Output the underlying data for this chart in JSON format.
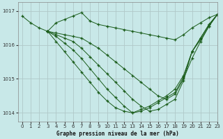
{
  "title": "Graphe pression niveau de la mer (hPa)",
  "background_color": "#c8e8e8",
  "grid_color": "#b0c8c8",
  "line_color": "#1a5c1a",
  "marker": "+",
  "xlim": [
    -0.5,
    23
  ],
  "ylim": [
    1013.75,
    1017.25
  ],
  "yticks": [
    1014,
    1015,
    1016,
    1017
  ],
  "xticks": [
    0,
    1,
    2,
    3,
    4,
    5,
    6,
    7,
    8,
    9,
    10,
    11,
    12,
    13,
    14,
    15,
    16,
    17,
    18,
    19,
    20,
    21,
    22,
    23
  ],
  "series": [
    {
      "x": [
        0,
        1,
        2,
        3,
        4,
        5,
        6,
        7,
        8,
        9,
        10,
        11,
        12,
        13,
        14,
        15,
        16,
        17,
        18,
        19,
        20,
        21,
        22,
        23
      ],
      "y": [
        1016.85,
        1016.65,
        1016.5,
        1016.4,
        1016.65,
        1016.75,
        1016.85,
        1016.95,
        1016.7,
        1016.6,
        1016.55,
        1016.5,
        1016.45,
        1016.4,
        1016.35,
        1016.3,
        1016.25,
        1016.2,
        1016.15,
        1016.3,
        1016.5,
        1016.65,
        1016.8,
        1016.9
      ]
    },
    {
      "x": [
        3,
        4,
        5,
        6,
        7,
        8,
        9,
        10,
        11,
        12,
        13,
        14,
        15,
        16,
        17,
        18,
        19,
        20,
        21,
        22,
        23
      ],
      "y": [
        1016.4,
        1016.35,
        1016.3,
        1016.25,
        1016.2,
        1016.05,
        1015.9,
        1015.7,
        1015.5,
        1015.3,
        1015.1,
        1014.9,
        1014.7,
        1014.5,
        1014.4,
        1014.55,
        1015.0,
        1015.6,
        1016.1,
        1016.55,
        1016.9
      ]
    },
    {
      "x": [
        3,
        4,
        5,
        6,
        7,
        8,
        9,
        10,
        11,
        12,
        13,
        14,
        15,
        16,
        17,
        18,
        19,
        20,
        21,
        22,
        23
      ],
      "y": [
        1016.4,
        1016.3,
        1016.2,
        1016.1,
        1015.9,
        1015.65,
        1015.4,
        1015.15,
        1014.9,
        1014.65,
        1014.4,
        1014.2,
        1014.05,
        1014.1,
        1014.25,
        1014.4,
        1014.95,
        1015.8,
        1016.15,
        1016.55,
        1016.9
      ]
    },
    {
      "x": [
        3,
        4,
        5,
        6,
        7,
        8,
        9,
        10,
        11,
        12,
        13,
        14,
        15,
        16,
        17,
        18,
        19,
        20,
        21,
        22,
        23
      ],
      "y": [
        1016.4,
        1016.25,
        1016.05,
        1015.85,
        1015.6,
        1015.3,
        1015.0,
        1014.7,
        1014.45,
        1014.2,
        1014.0,
        1014.05,
        1014.15,
        1014.3,
        1014.45,
        1014.6,
        1015.05,
        1015.8,
        1016.2,
        1016.6,
        1016.9
      ]
    },
    {
      "x": [
        3,
        4,
        5,
        6,
        7,
        8,
        9,
        10,
        11,
        12,
        13,
        14,
        15,
        16,
        17,
        18,
        19,
        20,
        21,
        22,
        23
      ],
      "y": [
        1016.4,
        1016.1,
        1015.8,
        1015.5,
        1015.2,
        1014.9,
        1014.6,
        1014.35,
        1014.15,
        1014.05,
        1014.0,
        1014.1,
        1014.2,
        1014.35,
        1014.5,
        1014.7,
        1015.1,
        1015.8,
        1016.2,
        1016.6,
        1016.9
      ]
    }
  ]
}
